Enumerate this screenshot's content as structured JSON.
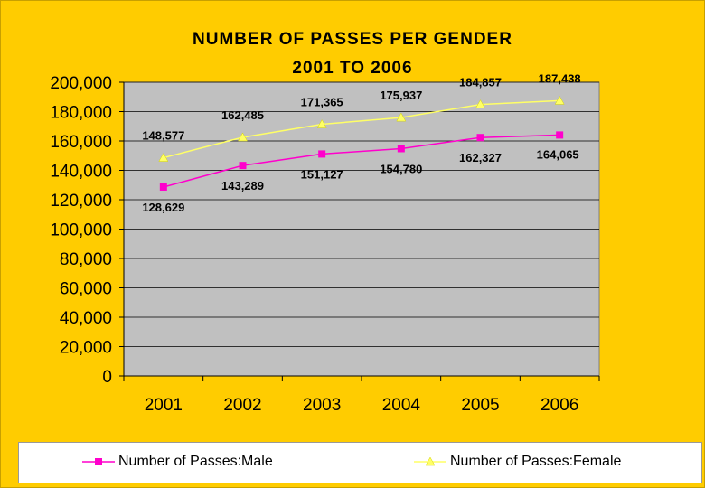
{
  "chart_data": {
    "type": "line",
    "title": "NUMBER OF PASSES PER GENDER",
    "subtitle": "2001 TO 2006",
    "categories": [
      "2001",
      "2002",
      "2003",
      "2004",
      "2005",
      "2006"
    ],
    "ylim": [
      0,
      200000
    ],
    "yticks": [
      "0",
      "20,000",
      "40,000",
      "60,000",
      "80,000",
      "100,000",
      "120,000",
      "140,000",
      "160,000",
      "180,000",
      "200,000"
    ],
    "ytick_values": [
      0,
      20000,
      40000,
      60000,
      80000,
      100000,
      120000,
      140000,
      160000,
      180000,
      200000
    ],
    "grid": true,
    "legend_position": "bottom",
    "series": [
      {
        "name": "Number of Passes:Male",
        "values": [
          128629,
          143289,
          151127,
          154780,
          162327,
          164065
        ],
        "labels": [
          "128,629",
          "143,289",
          "151,127",
          "154,780",
          "162,327",
          "164,065"
        ],
        "color": "#ff00cc",
        "marker": "square"
      },
      {
        "name": "Number of Passes:Female",
        "values": [
          148577,
          162485,
          171365,
          175937,
          184857,
          187438
        ],
        "labels": [
          "148,577",
          "162,485",
          "171,365",
          "175,937",
          "184,857",
          "187,438"
        ],
        "color": "#ffff66",
        "marker": "triangle"
      }
    ]
  },
  "colors": {
    "background": "#ffcc00",
    "plot_area": "#c0c0c0"
  }
}
